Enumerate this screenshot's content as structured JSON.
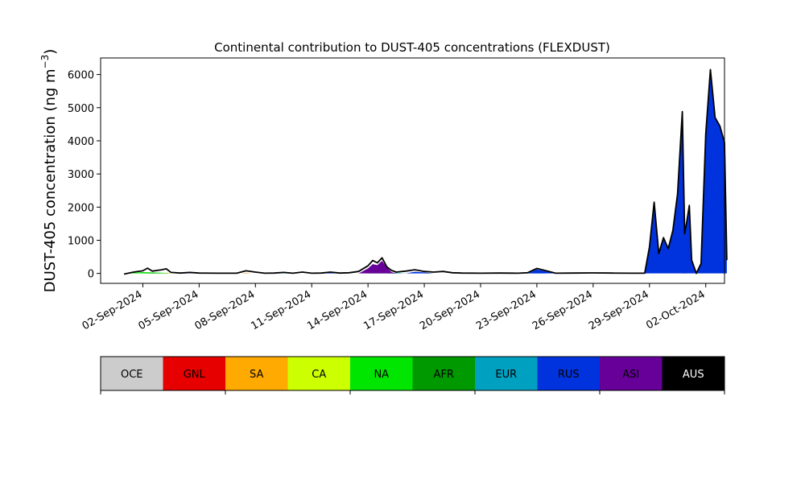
{
  "chart_data": {
    "type": "area",
    "title": "Continental contribution to DUST-405 concentrations (FLEXDUST)",
    "ylabel": "DUST-405 concentration (ng m",
    "ylabel_sup": "−3",
    "ylabel_close": ")",
    "xlabel": "",
    "ylim": [
      -300,
      6500
    ],
    "xlim": [
      "2024-08-30T18:00",
      "2024-10-03T00:00"
    ],
    "y_ticks": [
      {
        "value": 0,
        "label": "0"
      },
      {
        "value": 1000,
        "label": "1000"
      },
      {
        "value": 2000,
        "label": "2000"
      },
      {
        "value": 3000,
        "label": "3000"
      },
      {
        "value": 4000,
        "label": "4000"
      },
      {
        "value": 5000,
        "label": "5000"
      },
      {
        "value": 6000,
        "label": "6000"
      }
    ],
    "x_ticks": [
      {
        "value": "2024-09-02",
        "label": "02-Sep-2024"
      },
      {
        "value": "2024-09-05",
        "label": "05-Sep-2024"
      },
      {
        "value": "2024-09-08",
        "label": "08-Sep-2024"
      },
      {
        "value": "2024-09-11",
        "label": "11-Sep-2024"
      },
      {
        "value": "2024-09-14",
        "label": "14-Sep-2024"
      },
      {
        "value": "2024-09-17",
        "label": "17-Sep-2024"
      },
      {
        "value": "2024-09-20",
        "label": "20-Sep-2024"
      },
      {
        "value": "2024-09-23",
        "label": "23-Sep-2024"
      },
      {
        "value": "2024-09-26",
        "label": "26-Sep-2024"
      },
      {
        "value": "2024-09-29",
        "label": "29-Sep-2024"
      },
      {
        "value": "2024-10-02",
        "label": "02-Oct-2024"
      }
    ],
    "grid": false,
    "legend_placement": "bottom colorbar",
    "legend": [
      {
        "label": "OCE",
        "color": "#cccccc",
        "text_color": "#000000"
      },
      {
        "label": "GNL",
        "color": "#e60000",
        "text_color": "#000000"
      },
      {
        "label": "SA",
        "color": "#ffaa00",
        "text_color": "#000000"
      },
      {
        "label": "CA",
        "color": "#ccff00",
        "text_color": "#000000"
      },
      {
        "label": "NA",
        "color": "#00e600",
        "text_color": "#000000"
      },
      {
        "label": "AFR",
        "color": "#009900",
        "text_color": "#000000"
      },
      {
        "label": "EUR",
        "color": "#00a0c0",
        "text_color": "#000000"
      },
      {
        "label": "RUS",
        "color": "#0033dd",
        "text_color": "#000000"
      },
      {
        "label": "ASI",
        "color": "#660099",
        "text_color": "#000000"
      },
      {
        "label": "AUS",
        "color": "#000000",
        "text_color": "#ffffff"
      }
    ],
    "total_line_color": "#000000",
    "series": [
      {
        "region": "OCE",
        "points": []
      },
      {
        "region": "GNL",
        "points": [
          [
            "2024-09-30T19:00",
            0
          ],
          [
            "2024-09-30T21:00",
            80
          ],
          [
            "2024-09-30T23:00",
            0
          ]
        ]
      },
      {
        "region": "SA",
        "points": [
          [
            "2024-09-03T00:00",
            0
          ],
          [
            "2024-09-03T06:00",
            20
          ],
          [
            "2024-09-03T12:00",
            0
          ],
          [
            "2024-09-07T06:00",
            0
          ],
          [
            "2024-09-07T12:00",
            15
          ],
          [
            "2024-09-07T18:00",
            0
          ]
        ]
      },
      {
        "region": "CA",
        "points": [
          [
            "2024-09-17T00:00",
            0
          ],
          [
            "2024-09-17T06:00",
            10
          ],
          [
            "2024-09-17T12:00",
            0
          ]
        ]
      },
      {
        "region": "NA",
        "points": [
          [
            "2024-09-01T00:00",
            0
          ],
          [
            "2024-09-01T12:00",
            20
          ],
          [
            "2024-09-02T00:00",
            40
          ],
          [
            "2024-09-02T12:00",
            30
          ],
          [
            "2024-09-03T00:00",
            20
          ],
          [
            "2024-09-03T12:00",
            0
          ],
          [
            "2024-09-05T00:00",
            0
          ],
          [
            "2024-09-05T12:00",
            10
          ],
          [
            "2024-09-06T00:00",
            0
          ],
          [
            "2024-09-14T00:00",
            0
          ],
          [
            "2024-09-14T12:00",
            20
          ],
          [
            "2024-09-15T00:00",
            20
          ],
          [
            "2024-09-15T12:00",
            0
          ],
          [
            "2024-09-26T00:00",
            0
          ],
          [
            "2024-09-26T12:00",
            15
          ],
          [
            "2024-09-27T00:00",
            0
          ]
        ]
      },
      {
        "region": "AFR",
        "points": [
          [
            "2024-09-02T00:00",
            0
          ],
          [
            "2024-09-02T12:00",
            15
          ],
          [
            "2024-09-03T00:00",
            0
          ],
          [
            "2024-09-25T12:00",
            0
          ],
          [
            "2024-09-26T00:00",
            10
          ],
          [
            "2024-09-26T12:00",
            0
          ]
        ]
      },
      {
        "region": "EUR",
        "points": [
          [
            "2024-09-09T00:00",
            0
          ],
          [
            "2024-09-09T12:00",
            10
          ],
          [
            "2024-09-10T00:00",
            0
          ],
          [
            "2024-09-15T00:00",
            0
          ],
          [
            "2024-09-15T12:00",
            20
          ],
          [
            "2024-09-16T00:00",
            0
          ],
          [
            "2024-09-22T12:00",
            0
          ],
          [
            "2024-09-23T00:00",
            15
          ],
          [
            "2024-09-23T12:00",
            0
          ]
        ]
      },
      {
        "region": "RUS",
        "points": [
          [
            "2024-09-04T00:00",
            0
          ],
          [
            "2024-09-04T12:00",
            10
          ],
          [
            "2024-09-05T00:00",
            0
          ],
          [
            "2024-09-11T12:00",
            0
          ],
          [
            "2024-09-12T00:00",
            20
          ],
          [
            "2024-09-12T12:00",
            0
          ],
          [
            "2024-09-16T00:00",
            0
          ],
          [
            "2024-09-16T12:00",
            50
          ],
          [
            "2024-09-17T00:00",
            30
          ],
          [
            "2024-09-17T12:00",
            0
          ],
          [
            "2024-09-22T12:00",
            0
          ],
          [
            "2024-09-23T00:00",
            120
          ],
          [
            "2024-09-23T12:00",
            60
          ],
          [
            "2024-09-24T00:00",
            0
          ],
          [
            "2024-09-28T18:00",
            0
          ],
          [
            "2024-09-29T00:00",
            800
          ],
          [
            "2024-09-29T06:00",
            2150
          ],
          [
            "2024-09-29T12:00",
            600
          ],
          [
            "2024-09-29T18:00",
            1080
          ],
          [
            "2024-09-30T00:00",
            750
          ],
          [
            "2024-09-30T06:00",
            1300
          ],
          [
            "2024-09-30T12:00",
            2400
          ],
          [
            "2024-09-30T18:00",
            4880
          ],
          [
            "2024-09-30T21:00",
            1200
          ],
          [
            "2024-10-01T00:00",
            1600
          ],
          [
            "2024-10-01T03:00",
            2050
          ],
          [
            "2024-10-01T06:00",
            400
          ],
          [
            "2024-10-01T12:00",
            0
          ],
          [
            "2024-10-01T18:00",
            300
          ],
          [
            "2024-10-02T00:00",
            4200
          ],
          [
            "2024-10-02T06:00",
            6150
          ],
          [
            "2024-10-02T12:00",
            4700
          ],
          [
            "2024-10-02T18:00",
            4450
          ],
          [
            "2024-10-03T00:00",
            3950
          ],
          [
            "2024-10-03T03:00",
            400
          ]
        ]
      },
      {
        "region": "ASI",
        "points": [
          [
            "2024-09-13T12:00",
            0
          ],
          [
            "2024-09-14T00:00",
            150
          ],
          [
            "2024-09-14T06:00",
            280
          ],
          [
            "2024-09-14T12:00",
            250
          ],
          [
            "2024-09-14T18:00",
            380
          ],
          [
            "2024-09-15T00:00",
            180
          ],
          [
            "2024-09-15T06:00",
            40
          ],
          [
            "2024-09-15T12:00",
            0
          ]
        ]
      },
      {
        "region": "AUS",
        "points": []
      }
    ],
    "total": [
      [
        "2024-09-01T00:00",
        -20
      ],
      [
        "2024-09-01T12:00",
        40
      ],
      [
        "2024-09-02T00:00",
        80
      ],
      [
        "2024-09-02T06:00",
        160
      ],
      [
        "2024-09-02T12:00",
        70
      ],
      [
        "2024-09-03T00:00",
        110
      ],
      [
        "2024-09-03T06:00",
        140
      ],
      [
        "2024-09-03T12:00",
        30
      ],
      [
        "2024-09-04T00:00",
        10
      ],
      [
        "2024-09-04T12:00",
        30
      ],
      [
        "2024-09-05T00:00",
        10
      ],
      [
        "2024-09-06T00:00",
        5
      ],
      [
        "2024-09-07T00:00",
        5
      ],
      [
        "2024-09-07T12:00",
        80
      ],
      [
        "2024-09-08T00:00",
        40
      ],
      [
        "2024-09-08T12:00",
        5
      ],
      [
        "2024-09-09T00:00",
        10
      ],
      [
        "2024-09-09T12:00",
        30
      ],
      [
        "2024-09-10T00:00",
        5
      ],
      [
        "2024-09-10T12:00",
        40
      ],
      [
        "2024-09-11T00:00",
        5
      ],
      [
        "2024-09-11T12:00",
        10
      ],
      [
        "2024-09-12T00:00",
        40
      ],
      [
        "2024-09-12T12:00",
        10
      ],
      [
        "2024-09-13T00:00",
        20
      ],
      [
        "2024-09-13T12:00",
        60
      ],
      [
        "2024-09-14T00:00",
        230
      ],
      [
        "2024-09-14T06:00",
        390
      ],
      [
        "2024-09-14T12:00",
        320
      ],
      [
        "2024-09-14T18:00",
        470
      ],
      [
        "2024-09-15T00:00",
        200
      ],
      [
        "2024-09-15T06:00",
        90
      ],
      [
        "2024-09-15T12:00",
        40
      ],
      [
        "2024-09-16T00:00",
        70
      ],
      [
        "2024-09-16T12:00",
        110
      ],
      [
        "2024-09-17T00:00",
        60
      ],
      [
        "2024-09-17T12:00",
        40
      ],
      [
        "2024-09-18T00:00",
        60
      ],
      [
        "2024-09-18T12:00",
        20
      ],
      [
        "2024-09-19T00:00",
        10
      ],
      [
        "2024-09-20T00:00",
        5
      ],
      [
        "2024-09-21T00:00",
        10
      ],
      [
        "2024-09-22T00:00",
        5
      ],
      [
        "2024-09-22T12:00",
        20
      ],
      [
        "2024-09-23T00:00",
        150
      ],
      [
        "2024-09-23T12:00",
        80
      ],
      [
        "2024-09-24T00:00",
        5
      ],
      [
        "2024-09-25T00:00",
        10
      ],
      [
        "2024-09-26T00:00",
        15
      ],
      [
        "2024-09-27T00:00",
        10
      ],
      [
        "2024-09-28T00:00",
        5
      ],
      [
        "2024-09-28T18:00",
        5
      ],
      [
        "2024-09-29T00:00",
        800
      ],
      [
        "2024-09-29T06:00",
        2150
      ],
      [
        "2024-09-29T12:00",
        600
      ],
      [
        "2024-09-29T18:00",
        1080
      ],
      [
        "2024-09-30T00:00",
        750
      ],
      [
        "2024-09-30T06:00",
        1300
      ],
      [
        "2024-09-30T12:00",
        2400
      ],
      [
        "2024-09-30T18:00",
        4880
      ],
      [
        "2024-09-30T21:00",
        1200
      ],
      [
        "2024-10-01T00:00",
        1600
      ],
      [
        "2024-10-01T03:00",
        2050
      ],
      [
        "2024-10-01T06:00",
        400
      ],
      [
        "2024-10-01T12:00",
        0
      ],
      [
        "2024-10-01T18:00",
        300
      ],
      [
        "2024-10-02T00:00",
        4200
      ],
      [
        "2024-10-02T06:00",
        6150
      ],
      [
        "2024-10-02T12:00",
        4700
      ],
      [
        "2024-10-02T18:00",
        4450
      ],
      [
        "2024-10-03T00:00",
        3950
      ],
      [
        "2024-10-03T03:00",
        400
      ]
    ]
  }
}
